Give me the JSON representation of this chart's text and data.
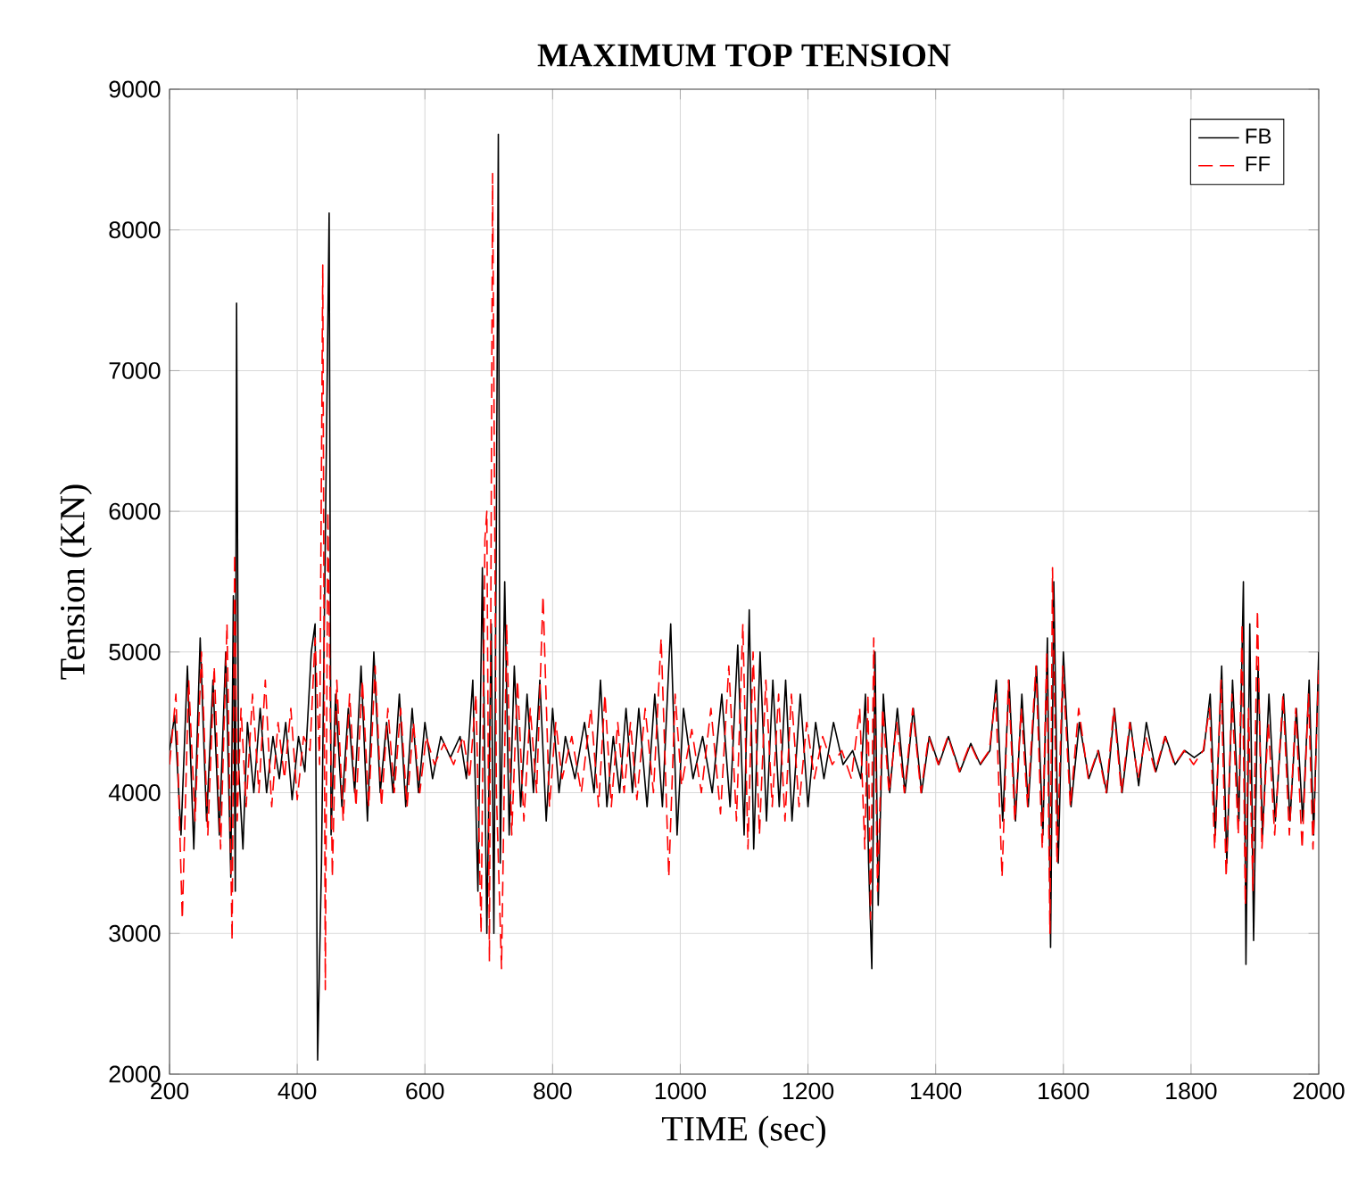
{
  "chart_data": {
    "type": "line",
    "title": "MAXIMUM TOP TENSION",
    "xlabel": "TIME (sec)",
    "ylabel": "Tension (KN)",
    "xlim": [
      200,
      2000
    ],
    "xticks": [
      200,
      400,
      600,
      800,
      1000,
      1200,
      1400,
      1600,
      1800,
      2000
    ],
    "ylim": [
      2000,
      9000
    ],
    "yticks": [
      2000,
      3000,
      4000,
      5000,
      6000,
      7000,
      8000,
      9000
    ],
    "grid": true,
    "legend": "top right",
    "series": [
      {
        "name": "FB",
        "color": "#000000",
        "line_style": "solid",
        "x": [
          200,
          208,
          218,
          228,
          238,
          248,
          258,
          268,
          278,
          288,
          296,
          300,
          303,
          305,
          308,
          315,
          322,
          332,
          342,
          352,
          362,
          372,
          382,
          392,
          402,
          412,
          422,
          428,
          432,
          438,
          444,
          450,
          453,
          460,
          470,
          480,
          490,
          500,
          510,
          520,
          530,
          540,
          550,
          560,
          570,
          580,
          590,
          600,
          612,
          625,
          640,
          655,
          665,
          675,
          683,
          690,
          697,
          704,
          708,
          712,
          715,
          718,
          725,
          732,
          740,
          750,
          760,
          770,
          780,
          790,
          800,
          810,
          820,
          835,
          850,
          865,
          875,
          885,
          895,
          905,
          915,
          925,
          935,
          948,
          960,
          972,
          985,
          995,
          1005,
          1020,
          1035,
          1050,
          1065,
          1078,
          1090,
          1100,
          1108,
          1115,
          1125,
          1135,
          1145,
          1155,
          1165,
          1175,
          1188,
          1200,
          1212,
          1225,
          1240,
          1255,
          1270,
          1283,
          1290,
          1295,
          1300,
          1305,
          1310,
          1318,
          1328,
          1340,
          1352,
          1365,
          1378,
          1390,
          1405,
          1420,
          1438,
          1455,
          1470,
          1485,
          1495,
          1505,
          1515,
          1525,
          1535,
          1545,
          1558,
          1568,
          1575,
          1580,
          1585,
          1592,
          1600,
          1612,
          1625,
          1640,
          1655,
          1668,
          1680,
          1692,
          1705,
          1718,
          1730,
          1745,
          1760,
          1775,
          1790,
          1805,
          1820,
          1830,
          1838,
          1848,
          1856,
          1865,
          1875,
          1882,
          1886,
          1892,
          1898,
          1905,
          1912,
          1922,
          1932,
          1945,
          1955,
          1965,
          1975,
          1985,
          1992,
          2000
        ],
        "values": [
          4300,
          4550,
          3700,
          4900,
          3600,
          5100,
          3800,
          4800,
          3700,
          5000,
          3400,
          5400,
          3300,
          7480,
          4200,
          3600,
          4500,
          4000,
          4600,
          4000,
          4400,
          4100,
          4500,
          3950,
          4400,
          4150,
          5000,
          5200,
          2100,
          3500,
          5800,
          8120,
          3700,
          4700,
          3900,
          4600,
          4000,
          4900,
          3800,
          5000,
          4000,
          4500,
          4000,
          4700,
          3900,
          4600,
          4000,
          4500,
          4100,
          4400,
          4250,
          4400,
          4100,
          4800,
          3300,
          5600,
          3000,
          5200,
          3000,
          6000,
          8680,
          3500,
          5500,
          3700,
          4900,
          3900,
          4700,
          4000,
          4800,
          3800,
          4600,
          4000,
          4400,
          4100,
          4500,
          4000,
          4800,
          3900,
          4400,
          4000,
          4600,
          4000,
          4600,
          3900,
          4700,
          3900,
          5200,
          3700,
          4600,
          4100,
          4400,
          4000,
          4700,
          3900,
          5050,
          3700,
          5300,
          3600,
          5000,
          3800,
          4800,
          3900,
          4800,
          3800,
          4700,
          3900,
          4500,
          4100,
          4500,
          4200,
          4300,
          4100,
          4700,
          3500,
          2750,
          5000,
          3200,
          4700,
          4000,
          4600,
          4000,
          4600,
          4000,
          4400,
          4200,
          4400,
          4150,
          4350,
          4200,
          4300,
          4800,
          3800,
          4800,
          3800,
          4700,
          3900,
          4900,
          3700,
          5100,
          2900,
          5500,
          3500,
          5000,
          3900,
          4500,
          4100,
          4300,
          4000,
          4600,
          4000,
          4500,
          4050,
          4500,
          4150,
          4400,
          4200,
          4300,
          4250,
          4300,
          4700,
          3700,
          4900,
          3500,
          4800,
          3800,
          5500,
          2780,
          5200,
          2950,
          4900,
          3700,
          4700,
          3800,
          4700,
          3800,
          4600,
          3800,
          4800,
          3700,
          5000
        ]
      },
      {
        "name": "FF",
        "color": "#ff0000",
        "line_style": "dashed",
        "x": [
          200,
          210,
          220,
          230,
          240,
          250,
          260,
          270,
          280,
          290,
          298,
          302,
          306,
          312,
          320,
          330,
          340,
          350,
          360,
          370,
          380,
          390,
          400,
          410,
          420,
          428,
          435,
          440,
          444,
          448,
          455,
          462,
          472,
          482,
          492,
          502,
          512,
          522,
          532,
          542,
          552,
          562,
          572,
          582,
          592,
          602,
          615,
          630,
          645,
          660,
          670,
          680,
          688,
          694,
          697,
          701,
          706,
          712,
          720,
          728,
          736,
          745,
          755,
          765,
          775,
          785,
          795,
          805,
          815,
          830,
          845,
          860,
          872,
          882,
          892,
          902,
          912,
          922,
          932,
          945,
          958,
          970,
          982,
          992,
          1002,
          1018,
          1033,
          1048,
          1063,
          1076,
          1088,
          1098,
          1106,
          1114,
          1124,
          1134,
          1144,
          1154,
          1164,
          1174,
          1186,
          1198,
          1210,
          1223,
          1238,
          1253,
          1268,
          1281,
          1289,
          1294,
          1298,
          1303,
          1309,
          1317,
          1327,
          1339,
          1351,
          1364,
          1377,
          1389,
          1404,
          1419,
          1437,
          1454,
          1469,
          1484,
          1494,
          1504,
          1514,
          1524,
          1534,
          1544,
          1557,
          1567,
          1574,
          1579,
          1583,
          1590,
          1599,
          1611,
          1624,
          1639,
          1654,
          1667,
          1679,
          1691,
          1704,
          1717,
          1729,
          1744,
          1759,
          1774,
          1789,
          1804,
          1819,
          1829,
          1837,
          1847,
          1855,
          1864,
          1874,
          1880,
          1885,
          1890,
          1897,
          1904,
          1911,
          1921,
          1931,
          1944,
          1954,
          1964,
          1974,
          1984,
          1991,
          2000
        ],
        "values": [
          4200,
          4700,
          3100,
          4800,
          3800,
          5000,
          3700,
          4900,
          3600,
          5200,
          2950,
          5700,
          3800,
          4600,
          3900,
          4700,
          4000,
          4800,
          3900,
          4500,
          4100,
          4600,
          3950,
          4400,
          4300,
          5100,
          4200,
          7750,
          2600,
          6000,
          3400,
          4800,
          3800,
          4700,
          3900,
          4800,
          3900,
          4900,
          3900,
          4600,
          4000,
          4600,
          3900,
          4500,
          4000,
          4400,
          4200,
          4350,
          4200,
          4400,
          4100,
          4700,
          3000,
          5800,
          6000,
          2800,
          8400,
          4000,
          2750,
          5200,
          3700,
          4800,
          3800,
          4600,
          4000,
          5400,
          3900,
          4500,
          4100,
          4400,
          4000,
          4600,
          3900,
          4700,
          3900,
          4500,
          4000,
          4500,
          3950,
          4600,
          4000,
          5100,
          3400,
          4700,
          4050,
          4450,
          4000,
          4600,
          3850,
          4900,
          3800,
          5200,
          3600,
          5000,
          3700,
          4800,
          3900,
          4700,
          3800,
          4700,
          3900,
          4500,
          4100,
          4400,
          4200,
          4300,
          4100,
          4600,
          3600,
          4700,
          3100,
          5100,
          3300,
          4600,
          4000,
          4500,
          4000,
          4600,
          4000,
          4400,
          4200,
          4400,
          4150,
          4350,
          4200,
          4300,
          4700,
          3400,
          4800,
          3800,
          4600,
          3900,
          4900,
          3600,
          5000,
          3000,
          5600,
          3500,
          4900,
          3900,
          4600,
          4100,
          4300,
          4000,
          4600,
          4000,
          4500,
          4100,
          4400,
          4150,
          4400,
          4200,
          4300,
          4200,
          4300,
          4600,
          3600,
          4800,
          3400,
          4700,
          3700,
          5200,
          3200,
          4600,
          3300,
          5300,
          3600,
          4500,
          3700,
          4700,
          3700,
          4600,
          3600,
          4700,
          3600,
          4900
        ]
      }
    ]
  }
}
